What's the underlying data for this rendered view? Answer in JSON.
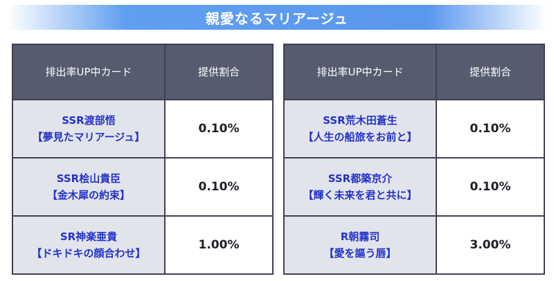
{
  "title": "親愛なるマリアージュ",
  "headers": {
    "card": "排出率UP中カード",
    "rate": "提供割合"
  },
  "left": [
    {
      "name": "SSR渡部悟",
      "subtitle": "【夢見たマリアージュ】",
      "rate": "0.10%"
    },
    {
      "name": "SSR桧山貴臣",
      "subtitle": "【金木犀の約束】",
      "rate": "0.10%"
    },
    {
      "name": "SR神楽亜貴",
      "subtitle": "【ドキドキの顔合わせ】",
      "rate": "1.00%"
    }
  ],
  "right": [
    {
      "name": "SSR荒木田蒼生",
      "subtitle": "【人生の船旅をお前と】",
      "rate": "0.10%"
    },
    {
      "name": "SSR都築京介",
      "subtitle": "【輝く未来を君と共に】",
      "rate": "0.10%"
    },
    {
      "name": "R朝霧司",
      "subtitle": "【愛を謳う唇】",
      "rate": "3.00%"
    }
  ],
  "colors": {
    "banner": "#5a97ee",
    "header_bg": "#565b6e",
    "name_bg": "#e2e4ec",
    "name_text": "#2233c9",
    "border": "#3f4152"
  }
}
